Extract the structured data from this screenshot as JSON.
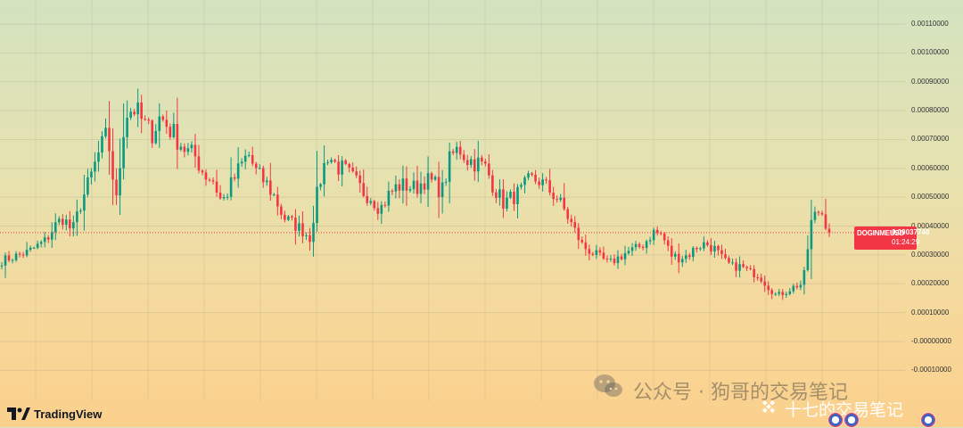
{
  "chart_data": {
    "type": "candlestick",
    "symbol": "DOGINMEUSD",
    "last_price": "0.00037740",
    "countdown": "01:24:29",
    "ylim": [
      -0.00012,
      0.00115
    ],
    "y_ticks": [
      {
        "value": 0.0011,
        "label": "0.00110000"
      },
      {
        "value": 0.001,
        "label": "0.00100000"
      },
      {
        "value": 0.0009,
        "label": "0.00090000"
      },
      {
        "value": 0.0008,
        "label": "0.00080000"
      },
      {
        "value": 0.0007,
        "label": "0.00070000"
      },
      {
        "value": 0.0006,
        "label": "0.00060000"
      },
      {
        "value": 0.0005,
        "label": "0.00050000"
      },
      {
        "value": 0.0004,
        "label": "0.00040000"
      },
      {
        "value": 0.0003,
        "label": "0.00030000"
      },
      {
        "value": 0.0002,
        "label": "0.00020000"
      },
      {
        "value": 0.0001,
        "label": "0.00010000"
      },
      {
        "value": 0.0,
        "label": "-0.00000000"
      },
      {
        "value": -0.0001,
        "label": "-0.00010000"
      }
    ],
    "grid": true,
    "up_color": "#089981",
    "down_color": "#f23645",
    "close_path": [
      0.00028,
      0.00029,
      0.0003,
      0.00031,
      0.00033,
      0.00035,
      0.0004,
      0.00043,
      0.00038,
      0.00048,
      0.00056,
      0.00065,
      0.00072,
      0.00048,
      0.00079,
      0.00081,
      0.00076,
      0.00072,
      0.00078,
      0.00074,
      0.0007,
      0.00066,
      0.00064,
      0.00058,
      0.00056,
      0.00048,
      0.00054,
      0.0006,
      0.00065,
      0.00058,
      0.00055,
      0.0005,
      0.00043,
      0.00041,
      0.00039,
      0.00036,
      0.00054,
      0.00065,
      0.00061,
      0.00059,
      0.00056,
      0.00052,
      0.0005,
      0.00046,
      0.00051,
      0.00054,
      0.00054,
      0.00053,
      0.00056,
      0.00055,
      0.00052,
      0.00064,
      0.00067,
      0.00063,
      0.00062,
      0.0006,
      0.00053,
      0.00048,
      0.0005,
      0.00052,
      0.00056,
      0.00056,
      0.00053,
      0.0005,
      0.00045,
      0.00039,
      0.00033,
      0.00031,
      0.00029,
      0.00027,
      0.00029,
      0.00031,
      0.00032,
      0.00034,
      0.00038,
      0.00037,
      0.0003,
      0.00029,
      0.0003,
      0.00033,
      0.00034,
      0.00032,
      0.00028,
      0.00026,
      0.00026,
      0.00024,
      0.00023,
      0.00019,
      0.00016,
      0.00017,
      0.00019,
      0.0002,
      0.00042,
      0.00046,
      0.00038
    ]
  },
  "branding": {
    "tradingview": "TradingView",
    "watermark_main": "公众号 · 狗哥的交易笔记",
    "watermark_second": "十七的交易笔记"
  },
  "colors": {
    "last_price_line": "#f23645",
    "axis_text": "#2f3336"
  },
  "icons": [
    "tradingview-logo-icon",
    "wechat-icon",
    "binance-icon",
    "flag-icon"
  ]
}
